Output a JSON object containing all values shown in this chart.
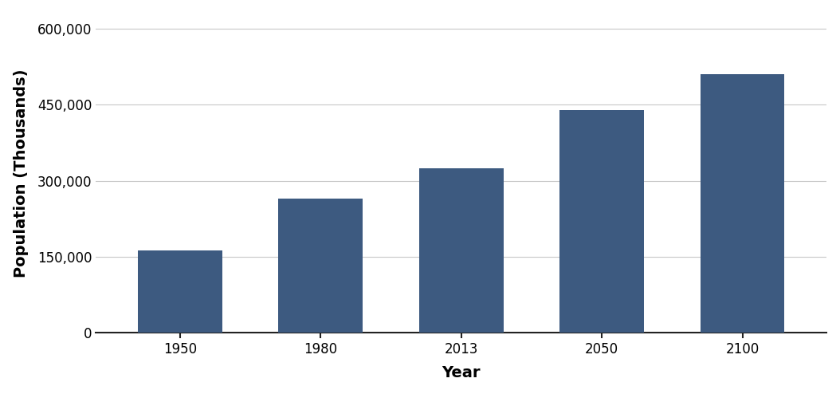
{
  "categories": [
    "1950",
    "1980",
    "2013",
    "2050",
    "2100"
  ],
  "values": [
    162000,
    265000,
    325000,
    440000,
    510000
  ],
  "bar_color": "#3d5a80",
  "xlabel": "Year",
  "ylabel": "Population (Thousands)",
  "ylim": [
    0,
    630000
  ],
  "yticks": [
    0,
    150000,
    300000,
    450000,
    600000
  ],
  "ytick_labels": [
    "0",
    "150,000",
    "300,000",
    "450,000",
    "600,000"
  ],
  "xlabel_fontsize": 14,
  "ylabel_fontsize": 14,
  "tick_fontsize": 12,
  "bar_width": 0.6,
  "background_color": "#ffffff",
  "grid_color": "#c8c8c8",
  "spine_color": "#222222"
}
